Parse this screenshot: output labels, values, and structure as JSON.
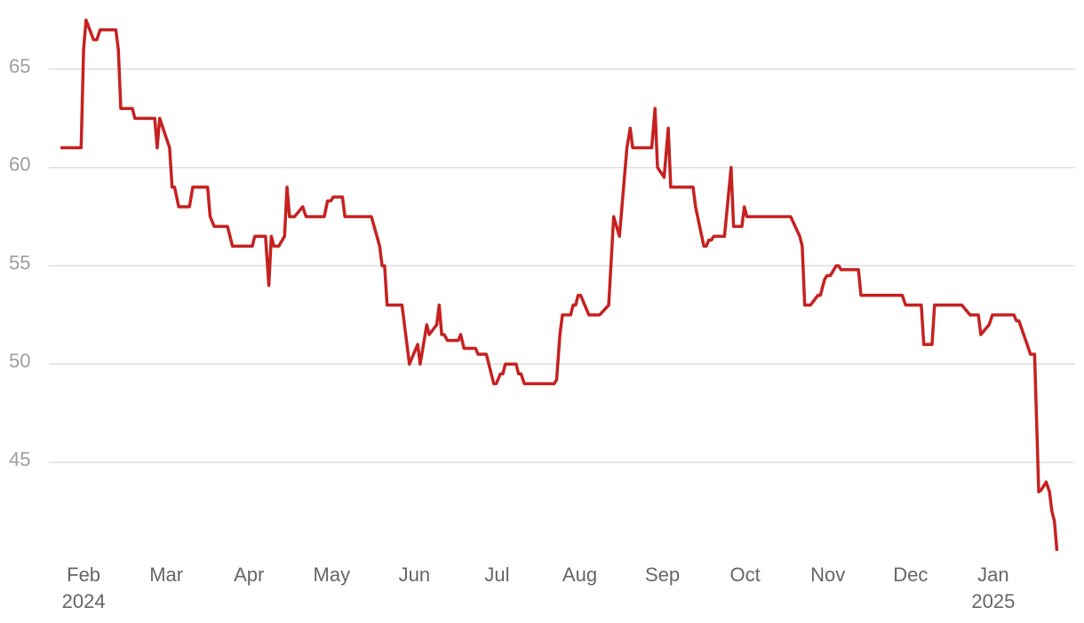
{
  "chart_data": {
    "type": "line",
    "x": [
      -0.28,
      -0.03,
      0,
      0.03,
      0.12,
      0.16,
      0.2,
      0.39,
      0.42,
      0.45,
      0.59,
      0.62,
      0.86,
      0.89,
      0.92,
      1.04,
      1.07,
      1.1,
      1.15,
      1.28,
      1.32,
      1.5,
      1.53,
      1.58,
      1.74,
      1.8,
      2.04,
      2.07,
      2.2,
      2.24,
      2.27,
      2.3,
      2.36,
      2.43,
      2.46,
      2.49,
      2.55,
      2.65,
      2.69,
      2.91,
      2.95,
      2.99,
      3.02,
      3.13,
      3.16,
      3.48,
      3.58,
      3.61,
      3.64,
      3.67,
      3.85,
      3.94,
      4.04,
      4.07,
      4.15,
      4.18,
      4.27,
      4.3,
      4.33,
      4.36,
      4.4,
      4.53,
      4.56,
      4.6,
      4.74,
      4.77,
      4.87,
      4.96,
      4.99,
      5.04,
      5.07,
      5.1,
      5.23,
      5.26,
      5.29,
      5.33,
      5.69,
      5.72,
      5.76,
      5.79,
      5.89,
      5.92,
      5.95,
      5.98,
      6.01,
      6.11,
      6.24,
      6.35,
      6.41,
      6.48,
      6.57,
      6.61,
      6.64,
      6.87,
      6.91,
      6.94,
      7.02,
      7.07,
      7.1,
      7.37,
      7.4,
      7.5,
      7.53,
      7.56,
      7.59,
      7.62,
      7.75,
      7.83,
      7.86,
      7.96,
      7.99,
      8.02,
      8.55,
      8.66,
      8.69,
      8.72,
      8.79,
      8.88,
      8.91,
      8.96,
      8.99,
      9.03,
      9.1,
      9.13,
      9.16,
      9.37,
      9.4,
      9.9,
      9.94,
      10.13,
      10.16,
      10.26,
      10.29,
      10.62,
      10.72,
      10.82,
      10.85,
      10.95,
      10.99,
      11.25,
      11.28,
      11.31,
      11.41,
      11.45,
      11.5,
      11.55,
      11.58,
      11.64,
      11.68,
      11.71,
      11.74,
      11.77
    ],
    "series": [
      {
        "color": "#c62121",
        "values": [
          61,
          61,
          66,
          67.5,
          66.5,
          66.5,
          67,
          67,
          66,
          63,
          63,
          62.5,
          62.5,
          61,
          62.5,
          61,
          59,
          59,
          58,
          58,
          59,
          59,
          57.5,
          57,
          57,
          56,
          56,
          56.5,
          56.5,
          54,
          56.5,
          56,
          56,
          56.5,
          59,
          57.5,
          57.5,
          58,
          57.5,
          57.5,
          58.3,
          58.3,
          58.5,
          58.5,
          57.5,
          57.5,
          56,
          55,
          55,
          53,
          53,
          50,
          51,
          50,
          52,
          51.5,
          52,
          53,
          51.5,
          51.5,
          51.2,
          51.2,
          51.5,
          50.8,
          50.8,
          50.5,
          50.5,
          49,
          49,
          49.5,
          49.5,
          50,
          50,
          49.5,
          49.5,
          49,
          49,
          49.2,
          51.5,
          52.5,
          52.5,
          53,
          53,
          53.5,
          53.5,
          52.5,
          52.5,
          53,
          57.5,
          56.5,
          61,
          62,
          61,
          61,
          63,
          60,
          59.5,
          62,
          59,
          59,
          58,
          56,
          56,
          56.3,
          56.3,
          56.5,
          56.5,
          60,
          57,
          57,
          58,
          57.5,
          57.5,
          56.5,
          56,
          53,
          53,
          53.5,
          53.5,
          54.3,
          54.5,
          54.5,
          55,
          55,
          54.8,
          54.8,
          53.5,
          53.5,
          53,
          53,
          51,
          51,
          53,
          53,
          52.5,
          52.5,
          51.5,
          52,
          52.5,
          52.5,
          52.2,
          52.2,
          51,
          50.5,
          50.5,
          43.5,
          43.6,
          44,
          43.5,
          42.5,
          42,
          40.5
        ]
      }
    ],
    "xlim": [
      -0.42,
      11.99
    ],
    "xticks": [
      {
        "value": 0,
        "label": "Feb"
      },
      {
        "value": 1,
        "label": "Mar"
      },
      {
        "value": 2,
        "label": "Apr"
      },
      {
        "value": 3,
        "label": "May"
      },
      {
        "value": 4,
        "label": "Jun"
      },
      {
        "value": 5,
        "label": "Jul"
      },
      {
        "value": 6,
        "label": "Aug"
      },
      {
        "value": 7,
        "label": "Sep"
      },
      {
        "value": 8,
        "label": "Oct"
      },
      {
        "value": 9,
        "label": "Nov"
      },
      {
        "value": 10,
        "label": "Dec"
      },
      {
        "value": 11,
        "label": "Jan"
      }
    ],
    "x_year_labels": [
      {
        "value": 0,
        "label": "2024"
      },
      {
        "value": 11,
        "label": "2025"
      }
    ],
    "ylim": [
      40,
      68
    ],
    "yticks": [
      45,
      50,
      55,
      60,
      65
    ],
    "grid": true
  }
}
